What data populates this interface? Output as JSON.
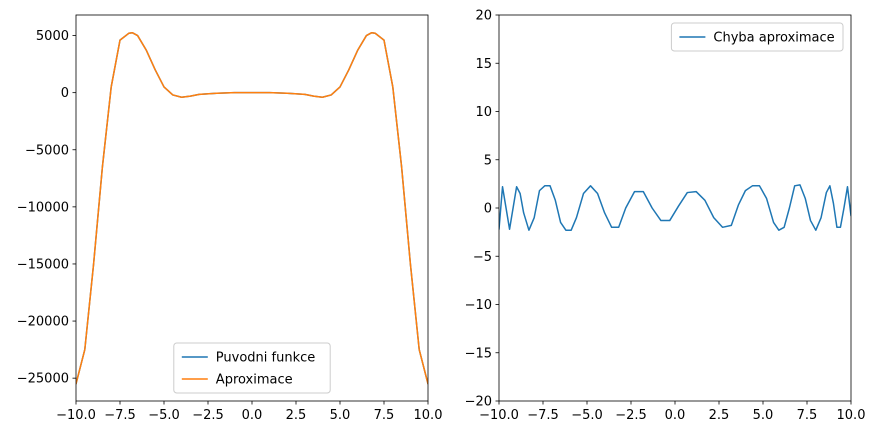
{
  "chart_data": [
    {
      "type": "line",
      "title": "",
      "xlabel": "",
      "ylabel": "",
      "xlim": [
        -10,
        10
      ],
      "ylim": [
        -27000,
        6800
      ],
      "xticks": [
        -10.0,
        -7.5,
        -5.0,
        -2.5,
        0.0,
        2.5,
        5.0,
        7.5,
        10.0
      ],
      "xtick_labels": [
        "−10.0",
        "−7.5",
        "−5.0",
        "−2.5",
        "0.0",
        "2.5",
        "5.0",
        "7.5",
        "10.0"
      ],
      "yticks": [
        5000,
        0,
        -5000,
        -10000,
        -15000,
        -20000,
        -25000
      ],
      "ytick_labels": [
        "5000",
        "0",
        "−5000",
        "−10000",
        "−15000",
        "−20000",
        "−25000"
      ],
      "legend_position": "lower-center",
      "grid": false,
      "series": [
        {
          "name": "Puvodni funkce",
          "color": "#1f77b4",
          "x": [
            -10,
            -9.5,
            -9,
            -8.5,
            -8,
            -7.5,
            -7,
            -6.8,
            -6.5,
            -6,
            -5.5,
            -5,
            -4.5,
            -4,
            -3.5,
            -3,
            -2,
            -1,
            0,
            1,
            2,
            3,
            3.5,
            4,
            4.5,
            5,
            5.5,
            6,
            6.5,
            6.8,
            7,
            7.5,
            8,
            8.5,
            9,
            9.5,
            10
          ],
          "y": [
            -25500,
            -22500,
            -15000,
            -6500,
            500,
            4600,
            5200,
            5250,
            5000,
            3700,
            2000,
            500,
            -200,
            -400,
            -300,
            -150,
            -50,
            0,
            0,
            0,
            -50,
            -150,
            -300,
            -400,
            -200,
            500,
            2000,
            3700,
            5000,
            5250,
            5200,
            4600,
            500,
            -6500,
            -15000,
            -22500,
            -25500
          ]
        },
        {
          "name": "Aproximace",
          "color": "#ff7f0e",
          "x": [
            -10,
            -9.5,
            -9,
            -8.5,
            -8,
            -7.5,
            -7,
            -6.8,
            -6.5,
            -6,
            -5.5,
            -5,
            -4.5,
            -4,
            -3.5,
            -3,
            -2,
            -1,
            0,
            1,
            2,
            3,
            3.5,
            4,
            4.5,
            5,
            5.5,
            6,
            6.5,
            6.8,
            7,
            7.5,
            8,
            8.5,
            9,
            9.5,
            10
          ],
          "y": [
            -25500,
            -22500,
            -15000,
            -6500,
            500,
            4600,
            5200,
            5250,
            5000,
            3700,
            2000,
            500,
            -200,
            -400,
            -300,
            -150,
            -50,
            0,
            0,
            0,
            -50,
            -150,
            -300,
            -400,
            -200,
            500,
            2000,
            3700,
            5000,
            5250,
            5200,
            4600,
            500,
            -6500,
            -15000,
            -22500,
            -25500
          ]
        }
      ]
    },
    {
      "type": "line",
      "title": "",
      "xlabel": "",
      "ylabel": "",
      "xlim": [
        -10,
        10
      ],
      "ylim": [
        -20,
        20
      ],
      "xticks": [
        -10.0,
        -7.5,
        -5.0,
        -2.5,
        0.0,
        2.5,
        5.0,
        7.5,
        10.0
      ],
      "xtick_labels": [
        "−10.0",
        "−7.5",
        "−5.0",
        "−2.5",
        "0.0",
        "2.5",
        "5.0",
        "7.5",
        "10.0"
      ],
      "yticks": [
        20,
        15,
        10,
        5,
        0,
        -5,
        -10,
        -15,
        -20
      ],
      "ytick_labels": [
        "20",
        "15",
        "10",
        "5",
        "0",
        "−5",
        "−10",
        "−15",
        "−20"
      ],
      "legend_position": "upper-right",
      "grid": false,
      "series": [
        {
          "name": "Chyba aproximace",
          "color": "#1f77b4",
          "x": [
            -10,
            -9.8,
            -9.6,
            -9.4,
            -9.2,
            -9.0,
            -8.8,
            -8.6,
            -8.3,
            -8.0,
            -7.7,
            -7.4,
            -7.1,
            -6.8,
            -6.5,
            -6.2,
            -5.9,
            -5.6,
            -5.2,
            -4.8,
            -4.4,
            -4.0,
            -3.6,
            -3.2,
            -2.8,
            -2.3,
            -1.8,
            -1.3,
            -0.8,
            -0.3,
            0.2,
            0.7,
            1.2,
            1.7,
            2.2,
            2.7,
            3.2,
            3.6,
            4.0,
            4.4,
            4.8,
            5.2,
            5.6,
            5.9,
            6.2,
            6.5,
            6.8,
            7.1,
            7.4,
            7.7,
            8.0,
            8.3,
            8.6,
            8.8,
            9.0,
            9.2,
            9.4,
            9.6,
            9.8,
            10
          ],
          "y": [
            -2.2,
            2.2,
            0.0,
            -2.2,
            0.0,
            2.2,
            1.5,
            -0.5,
            -2.3,
            -1.0,
            1.8,
            2.3,
            2.3,
            0.8,
            -1.5,
            -2.3,
            -2.3,
            -1.0,
            1.5,
            2.3,
            1.5,
            -0.5,
            -2.0,
            -2.0,
            0.0,
            1.7,
            1.7,
            0.0,
            -1.3,
            -1.3,
            0.2,
            1.6,
            1.7,
            0.8,
            -1.0,
            -2.0,
            -1.8,
            0.3,
            1.8,
            2.3,
            2.3,
            1.0,
            -1.5,
            -2.3,
            -2.0,
            0.0,
            2.3,
            2.4,
            1.0,
            -1.3,
            -2.3,
            -1.0,
            1.6,
            2.3,
            0.5,
            -2.0,
            -2.0,
            0.0,
            2.2,
            -0.8
          ]
        }
      ]
    }
  ]
}
